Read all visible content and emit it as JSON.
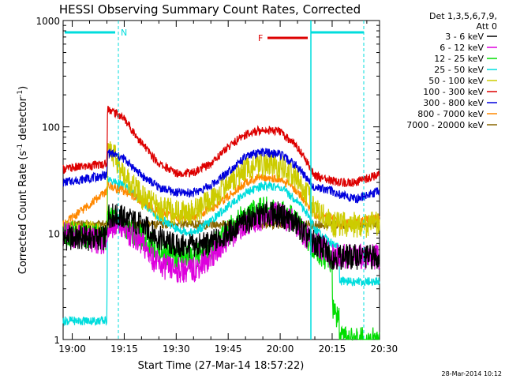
{
  "chart_data": {
    "type": "line",
    "title": "HESSI Observing Summary Count Rates, Corrected",
    "xlabel": "Start Time (27-Mar-14 18:57:22)",
    "ylabel_parts": [
      "Corrected Count Rate (s",
      "-1",
      " detector",
      "-1",
      ")"
    ],
    "x_ticks": [
      "19:00",
      "19:15",
      "19:30",
      "19:45",
      "20:00",
      "20:15",
      "20:30"
    ],
    "x_tick_minutes": [
      0,
      15,
      30,
      45,
      60,
      75,
      90
    ],
    "x_range_minutes": [
      -2.63,
      88.67
    ],
    "y_log": true,
    "ylim": [
      1,
      1000
    ],
    "y_tick_labels": [
      "1",
      "10",
      "100",
      "1000"
    ],
    "legend_header": [
      "Det 1,3,5,6,7,9,",
      "Att 0"
    ],
    "footer_date": "28-Mar-2014 10:12",
    "flag_N": "N",
    "flag_F": "F",
    "series": [
      {
        "name": "3 - 6 keV",
        "color": "#000000",
        "points": [
          [
            -2.6,
            9
          ],
          [
            10,
            9
          ],
          [
            10.2,
            15
          ],
          [
            15,
            14
          ],
          [
            20,
            12
          ],
          [
            25,
            9
          ],
          [
            30,
            7.5
          ],
          [
            35,
            7.5
          ],
          [
            40,
            8
          ],
          [
            45,
            10
          ],
          [
            50,
            13
          ],
          [
            55,
            15
          ],
          [
            60,
            15
          ],
          [
            65,
            12
          ],
          [
            68,
            9
          ],
          [
            70,
            8
          ],
          [
            73,
            7
          ],
          [
            74.5,
            6
          ]
        ]
      },
      {
        "name": "6 - 12 keV",
        "color": "#dd00dd",
        "points": [
          [
            -2.6,
            10
          ],
          [
            10,
            8
          ],
          [
            10.2,
            12
          ],
          [
            15,
            11
          ],
          [
            20,
            8
          ],
          [
            25,
            5
          ],
          [
            30,
            4.5
          ],
          [
            35,
            4.5
          ],
          [
            40,
            6
          ],
          [
            45,
            9
          ],
          [
            50,
            12
          ],
          [
            55,
            14
          ],
          [
            60,
            15
          ],
          [
            65,
            12
          ],
          [
            68,
            9
          ],
          [
            70,
            8
          ],
          [
            73,
            7
          ],
          [
            74.5,
            6
          ]
        ]
      },
      {
        "name": "12 - 25 keV",
        "color": "#00dd00",
        "points": [
          [
            -2.6,
            10
          ],
          [
            10,
            9
          ],
          [
            10.2,
            14
          ],
          [
            15,
            12
          ],
          [
            20,
            9
          ],
          [
            25,
            7
          ],
          [
            30,
            6
          ],
          [
            35,
            6
          ],
          [
            40,
            7
          ],
          [
            45,
            11
          ],
          [
            50,
            15
          ],
          [
            55,
            17
          ],
          [
            60,
            16
          ],
          [
            65,
            13
          ],
          [
            68,
            9
          ],
          [
            70,
            7
          ],
          [
            73,
            6
          ],
          [
            75,
            5
          ],
          [
            75.1,
            2
          ],
          [
            77,
            1.5
          ],
          [
            77.1,
            1
          ],
          [
            88.7,
            1
          ]
        ]
      },
      {
        "name": "25 - 50 keV",
        "color": "#00dddd",
        "points": [
          [
            -2.6,
            1.5
          ],
          [
            10,
            1.5
          ],
          [
            10.2,
            32
          ],
          [
            15,
            28
          ],
          [
            20,
            20
          ],
          [
            25,
            14
          ],
          [
            30,
            11
          ],
          [
            35,
            10
          ],
          [
            40,
            13
          ],
          [
            45,
            18
          ],
          [
            50,
            24
          ],
          [
            55,
            28
          ],
          [
            60,
            27
          ],
          [
            65,
            20
          ],
          [
            68,
            15
          ],
          [
            70,
            11
          ],
          [
            73,
            9
          ],
          [
            75,
            8
          ],
          [
            77,
            7.5
          ],
          [
            77.1,
            3.5
          ],
          [
            88.7,
            3.5
          ]
        ]
      },
      {
        "name": "50 - 100 keV",
        "color": "#cccc00",
        "points": [
          [
            -2.6,
            10
          ],
          [
            10,
            10
          ],
          [
            10.2,
            70
          ],
          [
            15,
            35
          ],
          [
            20,
            22
          ],
          [
            25,
            17
          ],
          [
            30,
            16
          ],
          [
            35,
            16
          ],
          [
            40,
            20
          ],
          [
            45,
            30
          ],
          [
            50,
            40
          ],
          [
            55,
            45
          ],
          [
            60,
            42
          ],
          [
            65,
            32
          ],
          [
            68,
            22
          ],
          [
            70,
            17
          ],
          [
            73,
            14
          ],
          [
            75,
            12
          ],
          [
            75.1,
            12
          ],
          [
            88.7,
            12
          ]
        ]
      },
      {
        "name": "100 - 300 keV",
        "color": "#dd0000",
        "points": [
          [
            -2.6,
            40
          ],
          [
            10,
            45
          ],
          [
            10.2,
            150
          ],
          [
            15,
            120
          ],
          [
            20,
            70
          ],
          [
            25,
            45
          ],
          [
            30,
            37
          ],
          [
            35,
            37
          ],
          [
            40,
            45
          ],
          [
            45,
            65
          ],
          [
            50,
            85
          ],
          [
            55,
            95
          ],
          [
            60,
            90
          ],
          [
            65,
            65
          ],
          [
            68,
            45
          ],
          [
            70,
            35
          ],
          [
            73,
            32
          ],
          [
            75,
            31
          ],
          [
            77,
            30
          ],
          [
            77.1,
            30
          ],
          [
            82,
            30
          ],
          [
            88.7,
            36
          ]
        ]
      },
      {
        "name": "300 - 800 keV",
        "color": "#0000dd",
        "points": [
          [
            -2.6,
            30
          ],
          [
            10,
            35
          ],
          [
            10.2,
            58
          ],
          [
            15,
            50
          ],
          [
            20,
            35
          ],
          [
            25,
            27
          ],
          [
            30,
            24
          ],
          [
            35,
            24
          ],
          [
            40,
            28
          ],
          [
            45,
            38
          ],
          [
            50,
            52
          ],
          [
            55,
            58
          ],
          [
            60,
            55
          ],
          [
            65,
            42
          ],
          [
            68,
            32
          ],
          [
            70,
            27
          ],
          [
            73,
            26
          ],
          [
            75,
            25
          ],
          [
            77,
            23
          ],
          [
            77.1,
            23
          ],
          [
            82,
            21
          ],
          [
            88.7,
            25
          ]
        ]
      },
      {
        "name": "800 - 7000 keV",
        "color": "#ff8800",
        "points": [
          [
            -2.6,
            12
          ],
          [
            10,
            25
          ],
          [
            10.2,
            28
          ],
          [
            15,
            25
          ],
          [
            20,
            20
          ],
          [
            25,
            16
          ],
          [
            30,
            14
          ],
          [
            35,
            14
          ],
          [
            40,
            17
          ],
          [
            45,
            22
          ],
          [
            50,
            30
          ],
          [
            55,
            34
          ],
          [
            60,
            32
          ],
          [
            65,
            25
          ],
          [
            68,
            18
          ],
          [
            70,
            15
          ],
          [
            73,
            14
          ],
          [
            75,
            14
          ],
          [
            77,
            12
          ],
          [
            77.1,
            12
          ],
          [
            88.7,
            14
          ]
        ]
      },
      {
        "name": "7000 - 20000 keV",
        "color": "#886600",
        "points": [
          [
            -2.6,
            12
          ],
          [
            10,
            12
          ],
          [
            10.2,
            12
          ],
          [
            88.7,
            12
          ]
        ]
      }
    ]
  }
}
